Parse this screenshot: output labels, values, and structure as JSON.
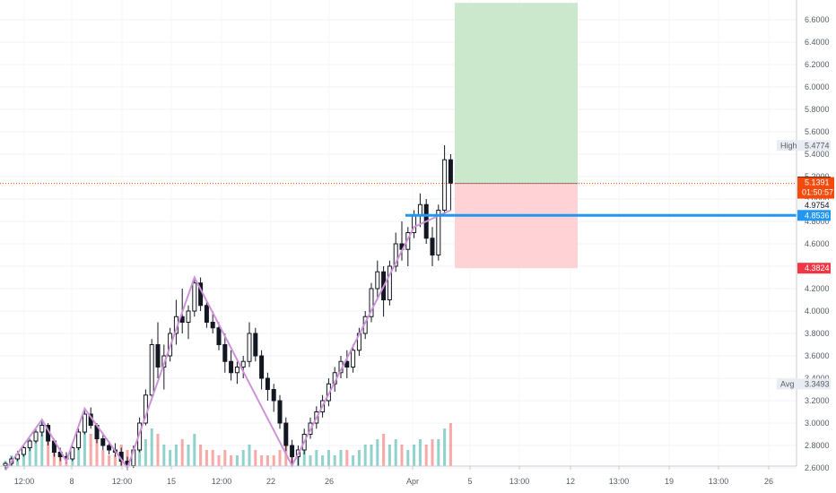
{
  "chart_data": {
    "type": "candlestick",
    "price_axis": {
      "ticks": [
        "2.6000",
        "2.8000",
        "3.0000",
        "3.2000",
        "3.4000",
        "3.6000",
        "3.8000",
        "4.0000",
        "4.2000",
        "4.4000",
        "4.6000",
        "4.8000",
        "5.0000",
        "5.2000",
        "5.4000",
        "5.6000",
        "5.8000",
        "6.0000",
        "6.2000",
        "6.4000",
        "6.6000"
      ],
      "ylim": [
        2.6,
        6.7
      ]
    },
    "time_axis": {
      "labels": [
        "12:00",
        "8",
        "12:00",
        "15",
        "12:00",
        "22",
        "26",
        "Apr",
        "5",
        "13:00",
        "12",
        "13:00",
        "19",
        "13:00",
        "26"
      ]
    },
    "series": [
      {
        "name": "candles",
        "ohlc": [
          [
            2.62,
            2.65,
            2.58,
            2.64
          ],
          [
            2.64,
            2.7,
            2.62,
            2.68
          ],
          [
            2.68,
            2.75,
            2.66,
            2.72
          ],
          [
            2.72,
            2.8,
            2.7,
            2.78
          ],
          [
            2.78,
            2.86,
            2.75,
            2.84
          ],
          [
            2.84,
            2.95,
            2.82,
            2.92
          ],
          [
            2.92,
            3.02,
            2.88,
            2.98
          ],
          [
            2.98,
            3.0,
            2.8,
            2.84
          ],
          [
            2.84,
            2.86,
            2.7,
            2.74
          ],
          [
            2.74,
            2.78,
            2.66,
            2.7
          ],
          [
            2.7,
            2.74,
            2.64,
            2.68
          ],
          [
            2.68,
            2.8,
            2.66,
            2.78
          ],
          [
            2.78,
            2.95,
            2.76,
            2.92
          ],
          [
            2.92,
            3.12,
            2.9,
            3.08
          ],
          [
            3.08,
            3.14,
            2.95,
            2.98
          ],
          [
            2.98,
            3.0,
            2.82,
            2.86
          ],
          [
            2.86,
            2.9,
            2.76,
            2.8
          ],
          [
            2.8,
            2.84,
            2.72,
            2.76
          ],
          [
            2.76,
            2.82,
            2.7,
            2.74
          ],
          [
            2.74,
            2.78,
            2.62,
            2.66
          ],
          [
            2.66,
            2.7,
            2.58,
            2.62
          ],
          [
            2.62,
            2.8,
            2.6,
            2.76
          ],
          [
            2.76,
            3.05,
            2.74,
            3.0
          ],
          [
            3.0,
            3.3,
            2.98,
            3.25
          ],
          [
            3.25,
            3.75,
            3.2,
            3.7
          ],
          [
            3.7,
            3.9,
            3.4,
            3.5
          ],
          [
            3.5,
            3.7,
            3.3,
            3.6
          ],
          [
            3.6,
            3.85,
            3.55,
            3.8
          ],
          [
            3.8,
            4.1,
            3.7,
            3.95
          ],
          [
            3.95,
            4.2,
            3.8,
            3.9
          ],
          [
            3.9,
            4.05,
            3.75,
            4.0
          ],
          [
            4.0,
            4.3,
            3.95,
            4.25
          ],
          [
            4.25,
            4.3,
            4.0,
            4.05
          ],
          [
            4.05,
            4.1,
            3.85,
            3.9
          ],
          [
            3.9,
            4.0,
            3.8,
            3.85
          ],
          [
            3.85,
            3.9,
            3.65,
            3.7
          ],
          [
            3.7,
            3.8,
            3.45,
            3.55
          ],
          [
            3.55,
            3.65,
            3.38,
            3.45
          ],
          [
            3.45,
            3.55,
            3.35,
            3.5
          ],
          [
            3.5,
            3.6,
            3.4,
            3.55
          ],
          [
            3.55,
            3.9,
            3.5,
            3.8
          ],
          [
            3.8,
            3.85,
            3.55,
            3.6
          ],
          [
            3.6,
            3.65,
            3.3,
            3.4
          ],
          [
            3.4,
            3.45,
            3.2,
            3.3
          ],
          [
            3.3,
            3.35,
            3.1,
            3.2
          ],
          [
            3.2,
            3.25,
            2.95,
            3.0
          ],
          [
            3.0,
            3.05,
            2.75,
            2.8
          ],
          [
            2.8,
            2.85,
            2.62,
            2.7
          ],
          [
            2.7,
            2.8,
            2.62,
            2.76
          ],
          [
            2.76,
            2.95,
            2.72,
            2.9
          ],
          [
            2.9,
            3.05,
            2.86,
            3.0
          ],
          [
            3.0,
            3.15,
            2.95,
            3.1
          ],
          [
            3.1,
            3.25,
            3.05,
            3.2
          ],
          [
            3.2,
            3.4,
            3.15,
            3.35
          ],
          [
            3.35,
            3.5,
            3.28,
            3.45
          ],
          [
            3.45,
            3.6,
            3.4,
            3.55
          ],
          [
            3.55,
            3.65,
            3.4,
            3.5
          ],
          [
            3.5,
            3.7,
            3.45,
            3.65
          ],
          [
            3.65,
            3.85,
            3.6,
            3.8
          ],
          [
            3.8,
            4.0,
            3.75,
            3.95
          ],
          [
            3.95,
            4.25,
            3.9,
            4.2
          ],
          [
            4.2,
            4.45,
            4.1,
            4.35
          ],
          [
            4.35,
            4.4,
            3.95,
            4.1
          ],
          [
            4.1,
            4.45,
            4.05,
            4.4
          ],
          [
            4.4,
            4.7,
            4.35,
            4.6
          ],
          [
            4.6,
            4.8,
            4.45,
            4.55
          ],
          [
            4.55,
            4.75,
            4.4,
            4.7
          ],
          [
            4.7,
            4.9,
            4.65,
            4.85
          ],
          [
            4.85,
            5.05,
            4.75,
            4.95
          ],
          [
            4.95,
            5.0,
            4.6,
            4.65
          ],
          [
            4.65,
            4.75,
            4.4,
            4.5
          ],
          [
            4.5,
            4.95,
            4.45,
            4.9
          ],
          [
            4.9,
            5.48,
            4.85,
            5.35
          ],
          [
            5.35,
            5.4,
            4.9,
            5.14
          ]
        ]
      },
      {
        "name": "volume",
        "values": [
          1,
          2,
          2,
          3,
          4,
          5,
          8,
          7,
          4,
          3,
          2,
          3,
          5,
          8,
          6,
          5,
          3,
          2,
          2,
          4,
          3,
          2,
          6,
          5,
          7,
          6,
          4,
          3,
          4,
          5,
          4,
          6,
          4,
          3,
          3,
          2,
          3,
          2,
          2,
          3,
          4,
          3,
          2,
          2,
          2,
          3,
          5,
          3,
          2,
          3,
          2,
          3,
          2,
          3,
          2,
          3,
          3,
          2,
          3,
          4,
          4,
          5,
          6,
          4,
          5,
          4,
          3,
          4,
          5,
          4,
          5,
          5,
          7,
          8
        ]
      }
    ],
    "zigzag": [
      [
        2.58,
        0
      ],
      [
        3.03,
        6
      ],
      [
        2.66,
        10
      ],
      [
        3.13,
        13
      ],
      [
        2.6,
        20
      ],
      [
        4.3,
        31
      ],
      [
        2.62,
        47
      ],
      [
        4.75,
        67
      ],
      [
        4.9,
        73
      ]
    ],
    "levels": {
      "high_label": "High",
      "high": "5.4774",
      "current": "5.1519",
      "last": "5.1391",
      "countdown": "01:50:57",
      "mid": "4.9754",
      "support": "4.8536",
      "stop": "4.3824",
      "avg_label": "Avg",
      "avg": "3.3493"
    },
    "position": {
      "entry": 5.1391,
      "target": 6.75,
      "stop": 4.3824
    },
    "colors": {
      "up": "#26a69a",
      "down": "#ef5350",
      "candle": "#131722",
      "zigzag": "#ce93d8",
      "support": "#2196f3",
      "current_tag": "#131722",
      "last_tag": "#f44b0d",
      "stop_tag": "#f23645",
      "profit": "#c8e6c9",
      "loss": "#ffcdd2"
    }
  }
}
